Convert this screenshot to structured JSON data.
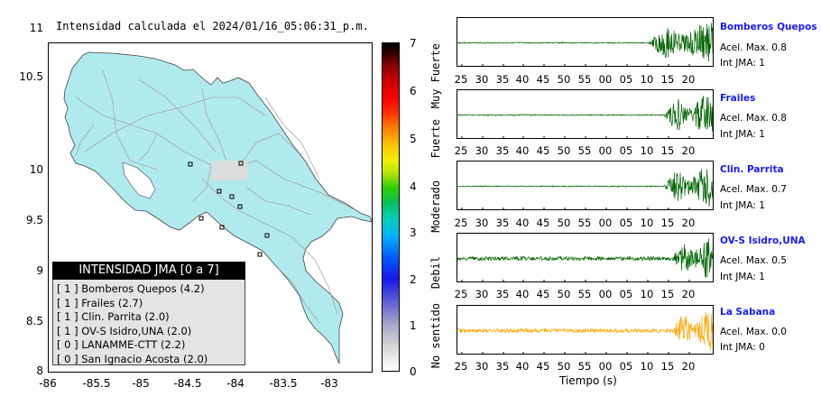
{
  "map": {
    "title": "Intensidad calculada el 2024/01/16_05:06:31_p.m.",
    "y_ticks": [
      "11",
      "10.5",
      "10",
      "9.5",
      "9",
      "8.5",
      "8"
    ],
    "x_ticks": [
      "-86",
      "-85.5",
      "-85",
      "-84.5",
      "-84",
      "-83.5",
      "-83"
    ],
    "colors": {
      "land": "#b0eaec",
      "roads": "#a8a8a8",
      "border": "#444444",
      "station_marker": "#000000"
    }
  },
  "legend": {
    "header": "INTENSIDAD JMA [0 a 7]",
    "rows": [
      "[ 1 ] Bomberos Quepos (4.2)",
      "[ 1 ] Frailes (2.7)",
      "[ 1 ] Clin. Parrita (2.0)",
      "[ 1 ] OV-S Isidro,UNA (2.0)",
      "[ 0 ] LANAMME-CTT (2.2)",
      "[ 0 ] San Ignacio Acosta (2.0)"
    ]
  },
  "colorbar": {
    "ticks": [
      "7",
      "6",
      "5",
      "4",
      "3",
      "2",
      "1",
      "0"
    ],
    "labels": [
      "Muy Fuerte",
      "Fuerte",
      "Moderado",
      "Debil",
      "No sentido"
    ]
  },
  "waveforms": {
    "x_ticks": [
      "25",
      "30",
      "35",
      "40",
      "45",
      "50",
      "55",
      "00",
      "05",
      "10",
      "15",
      "20"
    ],
    "x_label": "Tiempo (s)",
    "stations": [
      {
        "name": "Bomberos Quepos",
        "accel": "Acel. Max. 0.8",
        "intensity": "Int JMA: 1",
        "color": "#006400",
        "onset": 0.74
      },
      {
        "name": "Frailes",
        "accel": "Acel. Max. 0.8",
        "intensity": "Int JMA: 1",
        "color": "#006400",
        "onset": 0.8
      },
      {
        "name": "Clin. Parrita",
        "accel": "Acel. Max. 0.7",
        "intensity": "Int JMA: 1",
        "color": "#006400",
        "onset": 0.8
      },
      {
        "name": "OV-S Isidro,UNA",
        "accel": "Acel. Max. 0.5",
        "intensity": "Int JMA: 1",
        "color": "#006400",
        "onset": 0.83
      },
      {
        "name": "La Sabana",
        "accel": "Acel. Max. 0.0",
        "intensity": "Int JMA: 0",
        "color": "#ffa500",
        "onset": 0.83
      }
    ]
  }
}
